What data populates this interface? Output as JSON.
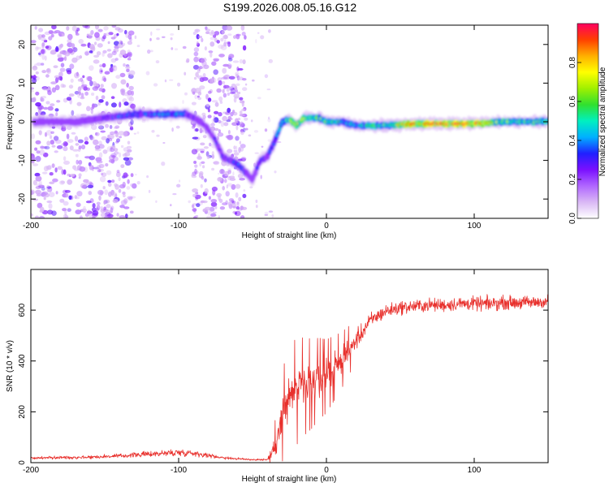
{
  "title": "S199.2026.008.05.16.G12",
  "colors": {
    "snr_line": "#e8302c",
    "cmap_stops": [
      "#ffffff",
      "#d9b8f5",
      "#b066ff",
      "#7a10ff",
      "#2020ff",
      "#00b0ff",
      "#00f0c0",
      "#30e030",
      "#a0f000",
      "#ffff00",
      "#ffb000",
      "#ff4000",
      "#ff0060"
    ]
  },
  "chart_data": [
    {
      "type": "heatmap",
      "name": "spectrogram",
      "xlabel": "Height of straight line (km)",
      "ylabel": "Frequency (Hz)",
      "xlim": [
        -200,
        150
      ],
      "ylim": [
        -25,
        25
      ],
      "xticks": [
        -200,
        -100,
        0,
        100
      ],
      "yticks": [
        -20,
        -10,
        0,
        10,
        20
      ],
      "ytick_labels": [
        "-20",
        "-10",
        "0",
        "10",
        "20"
      ],
      "xtick_labels": [
        "-200",
        "-100",
        "0",
        "100"
      ],
      "ridge": {
        "x": [
          -195,
          -170,
          -150,
          -130,
          -110,
          -95,
          -90,
          -85,
          -80,
          -75,
          -70,
          -65,
          -60,
          -55,
          -50,
          -45,
          -40,
          -35,
          -30,
          -25,
          -20,
          -15,
          -10,
          -5,
          0,
          10,
          20,
          40,
          60,
          80,
          100,
          120,
          150
        ],
        "freq": [
          0,
          0,
          1,
          2,
          2,
          2,
          1,
          0,
          -2,
          -5,
          -9,
          -10,
          -11,
          -13,
          -15,
          -10,
          -9,
          -5,
          0,
          0.5,
          -1,
          1,
          1,
          1,
          0,
          0,
          -1,
          -1,
          -0.5,
          -0.5,
          -0.5,
          0,
          0
        ],
        "amplitude": [
          0.15,
          0.2,
          0.3,
          0.35,
          0.4,
          0.4,
          0.3,
          0.25,
          0.25,
          0.3,
          0.3,
          0.3,
          0.35,
          0.3,
          0.25,
          0.3,
          0.3,
          0.35,
          0.5,
          0.6,
          0.7,
          0.65,
          0.6,
          0.6,
          0.55,
          0.5,
          0.45,
          0.55,
          0.9,
          0.9,
          0.9,
          0.6,
          0.55
        ]
      },
      "noise_regions": [
        [
          -200,
          -130
        ],
        [
          -90,
          -55
        ]
      ]
    },
    {
      "type": "colorbar",
      "label": "Normalized spectral amplitude",
      "range": [
        0,
        1
      ],
      "ticks": [
        0,
        0.2,
        0.4,
        0.6,
        0.8
      ],
      "tick_labels": [
        "0.0",
        "0.2",
        "0.4",
        "0.6",
        "0.8"
      ]
    },
    {
      "type": "line",
      "name": "snr",
      "xlabel": "Height of straight line (km)",
      "ylabel": "SNR (10 * v/v)",
      "xlim": [
        -200,
        150
      ],
      "ylim": [
        0,
        760
      ],
      "xticks": [
        -200,
        -100,
        0,
        100
      ],
      "yticks": [
        0,
        200,
        400,
        600
      ],
      "xtick_labels": [
        "-200",
        "-100",
        "0",
        "100"
      ],
      "ytick_labels": [
        "0",
        "200",
        "400",
        "600"
      ],
      "envelope": {
        "x": [
          -200,
          -180,
          -160,
          -140,
          -120,
          -100,
          -90,
          -80,
          -70,
          -60,
          -50,
          -40,
          -35,
          -30,
          -25,
          -20,
          -15,
          -10,
          -5,
          0,
          5,
          10,
          15,
          20,
          25,
          30,
          40,
          50,
          60,
          70,
          80,
          90,
          100,
          110,
          120,
          130,
          140,
          150
        ],
        "mean": [
          18,
          20,
          22,
          26,
          34,
          40,
          38,
          28,
          20,
          15,
          12,
          12,
          60,
          180,
          260,
          280,
          300,
          310,
          330,
          340,
          370,
          400,
          440,
          480,
          520,
          560,
          595,
          610,
          615,
          620,
          620,
          625,
          625,
          625,
          630,
          630,
          630,
          635
        ],
        "spread": [
          8,
          9,
          10,
          12,
          16,
          22,
          18,
          12,
          9,
          7,
          6,
          6,
          60,
          110,
          130,
          130,
          120,
          110,
          100,
          90,
          80,
          70,
          60,
          55,
          50,
          45,
          40,
          38,
          38,
          38,
          38,
          40,
          40,
          40,
          38,
          38,
          36,
          36
        ]
      }
    }
  ]
}
